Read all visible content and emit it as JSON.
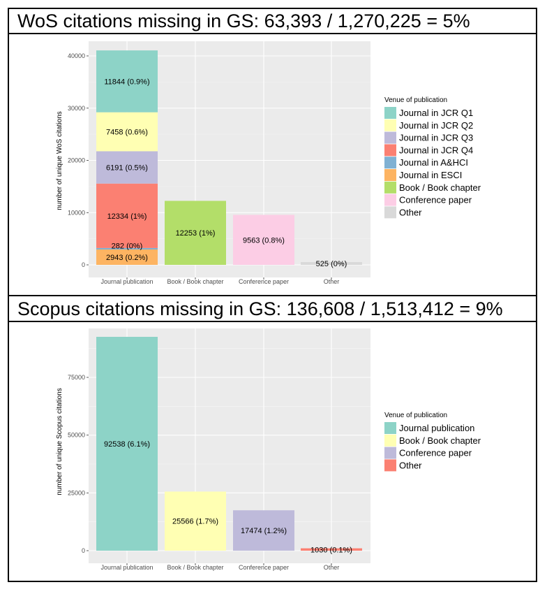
{
  "titles": {
    "wos": "WoS citations missing in GS: 63,393 / 1,270,225 = 5%",
    "scopus": "Scopus citations missing in GS: 136,608 / 1,513,412 = 9%"
  },
  "chart_data": [
    {
      "type": "bar",
      "stacked": true,
      "ylabel": "number of unique WoS citations",
      "ylim": [
        0,
        42000
      ],
      "yticks": [
        0,
        10000,
        20000,
        30000,
        40000
      ],
      "ytick_labels": [
        "0",
        "10000",
        "20000",
        "30000",
        "40000"
      ],
      "categories": [
        "Journal publication",
        "Book / Book chapter",
        "Conference paper",
        "Other"
      ],
      "legend_title": "Venue of publication",
      "legend_position": "right",
      "series": [
        {
          "name": "Journal in JCR Q1",
          "color": "#8dd3c7",
          "values": [
            11844,
            0,
            0,
            0
          ],
          "labels": [
            "11844 (0.9%)",
            "",
            "",
            ""
          ]
        },
        {
          "name": "Journal in JCR Q2",
          "color": "#ffffb3",
          "values": [
            7458,
            0,
            0,
            0
          ],
          "labels": [
            "7458 (0.6%)",
            "",
            "",
            ""
          ]
        },
        {
          "name": "Journal in JCR Q3",
          "color": "#bebada",
          "values": [
            6191,
            0,
            0,
            0
          ],
          "labels": [
            "6191 (0.5%)",
            "",
            "",
            ""
          ]
        },
        {
          "name": "Journal in JCR Q4",
          "color": "#fb8072",
          "values": [
            12334,
            0,
            0,
            0
          ],
          "labels": [
            "12334 (1%)",
            "",
            "",
            ""
          ]
        },
        {
          "name": "Journal in A&HCI",
          "color": "#80b1d3",
          "values": [
            282,
            0,
            0,
            0
          ],
          "labels": [
            "282 (0%)",
            "",
            "",
            ""
          ]
        },
        {
          "name": "Journal in ESCI",
          "color": "#fdb462",
          "values": [
            2943,
            0,
            0,
            0
          ],
          "labels": [
            "2943 (0.2%)",
            "",
            "",
            ""
          ]
        },
        {
          "name": "Book / Book chapter",
          "color": "#b3de69",
          "values": [
            0,
            12253,
            0,
            0
          ],
          "labels": [
            "",
            "12253 (1%)",
            "",
            ""
          ]
        },
        {
          "name": "Conference paper",
          "color": "#fccde5",
          "values": [
            0,
            0,
            9563,
            0
          ],
          "labels": [
            "",
            "",
            "9563 (0.8%)",
            ""
          ]
        },
        {
          "name": "Other",
          "color": "#d9d9d9",
          "values": [
            0,
            0,
            0,
            525
          ],
          "labels": [
            "",
            "",
            "",
            "525 (0%)"
          ]
        }
      ]
    },
    {
      "type": "bar",
      "stacked": true,
      "ylabel": "number of unique Scopus citations",
      "ylim": [
        0,
        96000
      ],
      "yticks": [
        0,
        25000,
        50000,
        75000
      ],
      "ytick_labels": [
        "0",
        "25000",
        "50000",
        "75000"
      ],
      "categories": [
        "Journal publication",
        "Book / Book chapter",
        "Conference paper",
        "Other"
      ],
      "legend_title": "Venue of publication",
      "legend_position": "right",
      "series": [
        {
          "name": "Journal publication",
          "color": "#8dd3c7",
          "values": [
            92538,
            0,
            0,
            0
          ],
          "labels": [
            "92538 (6.1%)",
            "",
            "",
            ""
          ]
        },
        {
          "name": "Book / Book chapter",
          "color": "#ffffb3",
          "values": [
            0,
            25566,
            0,
            0
          ],
          "labels": [
            "",
            "25566 (1.7%)",
            "",
            ""
          ]
        },
        {
          "name": "Conference paper",
          "color": "#bebada",
          "values": [
            0,
            0,
            17474,
            0
          ],
          "labels": [
            "",
            "",
            "17474 (1.2%)",
            ""
          ]
        },
        {
          "name": "Other",
          "color": "#fb8072",
          "values": [
            0,
            0,
            0,
            1030
          ],
          "labels": [
            "",
            "",
            "",
            "1030 (0.1%)"
          ]
        }
      ]
    }
  ]
}
